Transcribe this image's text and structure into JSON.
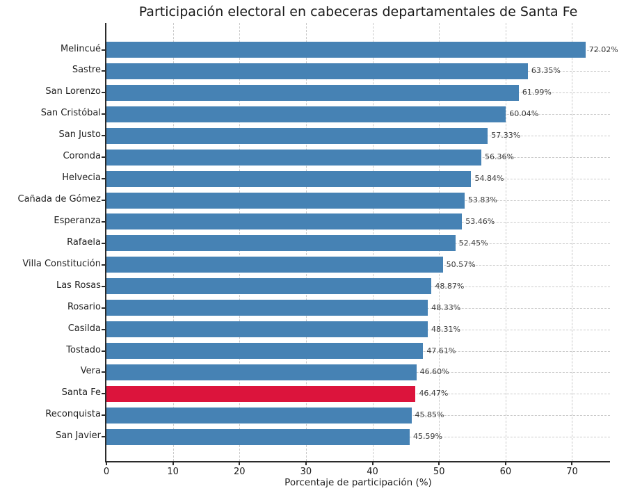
{
  "chart_data": {
    "type": "bar",
    "orientation": "horizontal",
    "title": "Participación electoral en cabeceras departamentales de Santa Fe",
    "xlabel": "Porcentaje de participación (%)",
    "ylabel": "",
    "categories": [
      "Melincué",
      "Sastre",
      "San Lorenzo",
      "San Cristóbal",
      "San Justo",
      "Coronda",
      "Helvecia",
      "Cañada de Gómez",
      "Esperanza",
      "Rafaela",
      "Villa Constitución",
      "Las Rosas",
      "Rosario",
      "Casilda",
      "Tostado",
      "Vera",
      "Santa Fe",
      "Reconquista",
      "San Javier"
    ],
    "values": [
      72.02,
      63.35,
      61.99,
      60.04,
      57.33,
      56.36,
      54.84,
      53.83,
      53.46,
      52.45,
      50.57,
      48.87,
      48.33,
      48.31,
      47.61,
      46.6,
      46.47,
      45.85,
      45.59
    ],
    "value_labels": [
      "72.02%",
      "63.35%",
      "61.99%",
      "60.04%",
      "57.33%",
      "56.36%",
      "54.84%",
      "53.83%",
      "53.46%",
      "52.45%",
      "50.57%",
      "48.87%",
      "48.33%",
      "48.31%",
      "47.61%",
      "46.60%",
      "46.47%",
      "45.85%",
      "45.59%"
    ],
    "highlight_category": "Santa Fe",
    "highlight_index": 16,
    "xticks": [
      0,
      10,
      20,
      30,
      40,
      50,
      60,
      70
    ],
    "xlim": [
      0,
      75.7
    ],
    "grid": "dashed, both axes, light gray, behind bars",
    "legend": null,
    "colors": {
      "bar": "#4682B4",
      "highlight": "#DC143C",
      "grid": "#c9c9c9",
      "spine": "#2b2b2b",
      "title_text": "#1a1a1a",
      "axis_text": "#1f1f1f",
      "value_text": "#3a3a3a",
      "background": "#ffffff"
    }
  }
}
